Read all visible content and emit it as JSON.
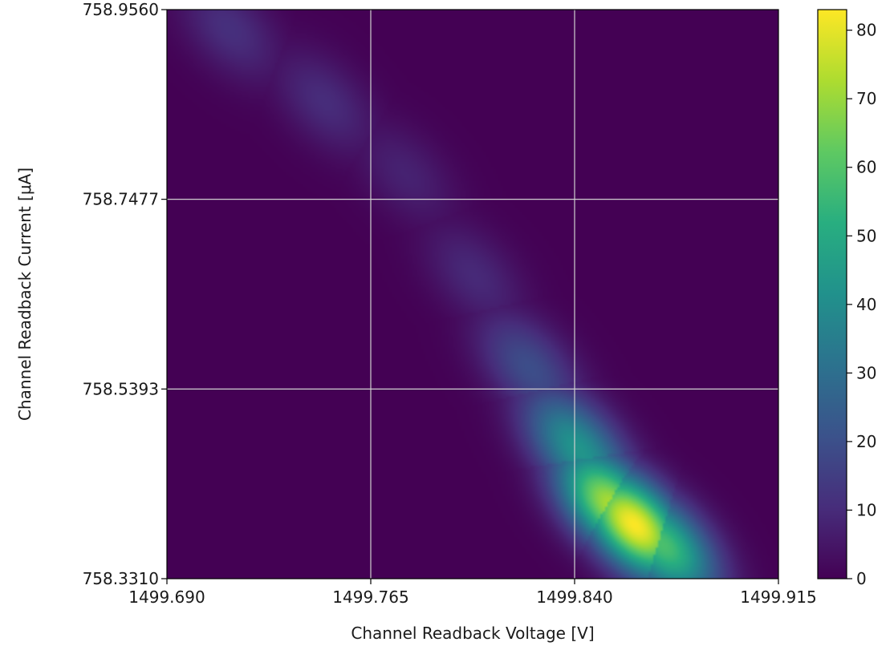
{
  "chart_data": {
    "type": "heatmap",
    "title": "",
    "xlabel": "Channel Readback Voltage [V]",
    "ylabel": "Channel Readback Current [μA]",
    "xlim": [
      1499.69,
      1499.915
    ],
    "ylim": [
      758.331,
      758.956
    ],
    "x_ticks": [
      "1499.690",
      "1499.765",
      "1499.840",
      "1499.915"
    ],
    "y_ticks": [
      "758.3310",
      "758.5393",
      "758.7477",
      "758.9560"
    ],
    "grid": true,
    "colorbar": {
      "range": [
        0,
        83
      ],
      "ticks": [
        "0",
        "10",
        "20",
        "30",
        "40",
        "50",
        "60",
        "70",
        "80"
      ],
      "colormap": "viridis"
    },
    "density_peaks": [
      {
        "x": 1499.713,
        "y": 758.935,
        "value": 13
      },
      {
        "x": 1499.748,
        "y": 758.855,
        "value": 12
      },
      {
        "x": 1499.778,
        "y": 758.775,
        "value": 9
      },
      {
        "x": 1499.803,
        "y": 758.665,
        "value": 11
      },
      {
        "x": 1499.823,
        "y": 758.565,
        "value": 22
      },
      {
        "x": 1499.84,
        "y": 758.48,
        "value": 45
      },
      {
        "x": 1499.852,
        "y": 758.415,
        "value": 70
      },
      {
        "x": 1499.862,
        "y": 758.39,
        "value": 83
      },
      {
        "x": 1499.874,
        "y": 758.365,
        "value": 60
      }
    ]
  }
}
